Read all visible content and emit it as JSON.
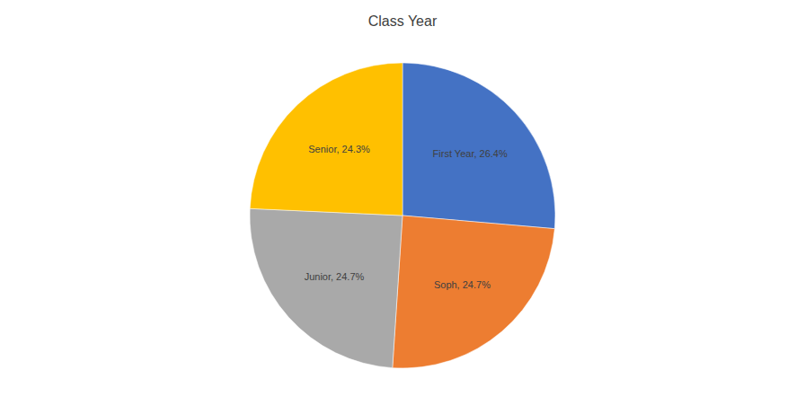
{
  "chart_data": {
    "type": "pie",
    "title": "Class Year",
    "categories": [
      "First Year",
      "Soph",
      "Junior",
      "Senior"
    ],
    "values": [
      26.4,
      24.7,
      24.7,
      24.3
    ],
    "value_labels": [
      "First Year, 26.4%",
      "Soph, 24.7%",
      "Junior, 24.7%",
      "Senior, 24.3%"
    ],
    "colors": [
      "#4472C4",
      "#ED7D31",
      "#A9A9A9",
      "#FFC000"
    ],
    "data_labels": true
  }
}
